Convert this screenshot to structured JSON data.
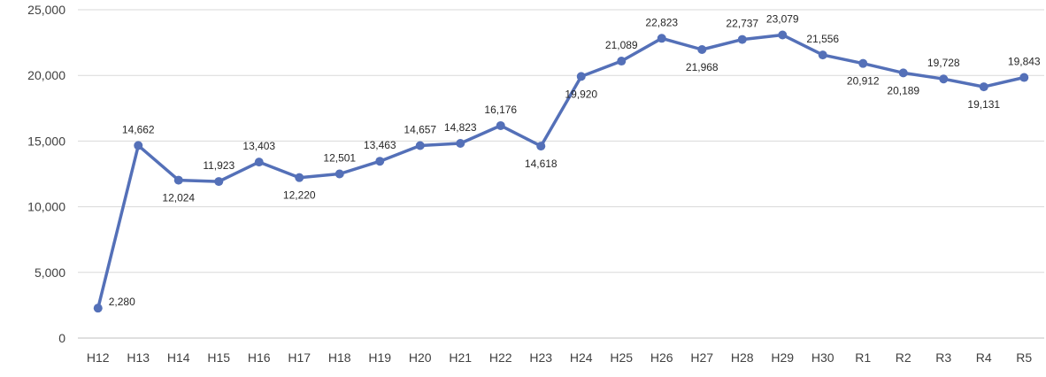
{
  "chart_data": {
    "type": "line",
    "categories": [
      "H12",
      "H13",
      "H14",
      "H15",
      "H16",
      "H17",
      "H18",
      "H19",
      "H20",
      "H21",
      "H22",
      "H23",
      "H24",
      "H25",
      "H26",
      "H27",
      "H28",
      "H29",
      "H30",
      "R1",
      "R2",
      "R3",
      "R4",
      "R5"
    ],
    "series": [
      {
        "values": [
          2280,
          14662,
          12024,
          11923,
          13403,
          12220,
          12501,
          13463,
          14657,
          14823,
          16176,
          14618,
          19920,
          21089,
          22823,
          21968,
          22737,
          23079,
          21556,
          20912,
          20189,
          19728,
          19131,
          19843
        ],
        "value_labels": [
          "2,280",
          "14,662",
          "12,024",
          "11,923",
          "13,403",
          "12,220",
          "12,501",
          "13,463",
          "14,657",
          "14,823",
          "16,176",
          "14,618",
          "19,920",
          "21,089",
          "22,823",
          "21,968",
          "22,737",
          "23,079",
          "21,556",
          "20,912",
          "20,189",
          "19,728",
          "19,131",
          "19,843"
        ],
        "label_side": [
          "right",
          "above",
          "below",
          "above",
          "above",
          "below",
          "above",
          "above",
          "above",
          "above",
          "above",
          "below",
          "below",
          "above",
          "above",
          "below",
          "above",
          "above",
          "above",
          "below",
          "below",
          "above",
          "below",
          "above"
        ]
      }
    ],
    "ylim": [
      0,
      25000
    ],
    "yticks": [
      0,
      5000,
      10000,
      15000,
      20000,
      25000
    ],
    "ytick_labels": [
      "0",
      "5,000",
      "10,000",
      "15,000",
      "20,000",
      "25,000"
    ],
    "grid": true,
    "legend": "none",
    "colors": {
      "line": "#5470b8",
      "marker": "#5470b8",
      "grid": "#d9d9d9"
    }
  }
}
